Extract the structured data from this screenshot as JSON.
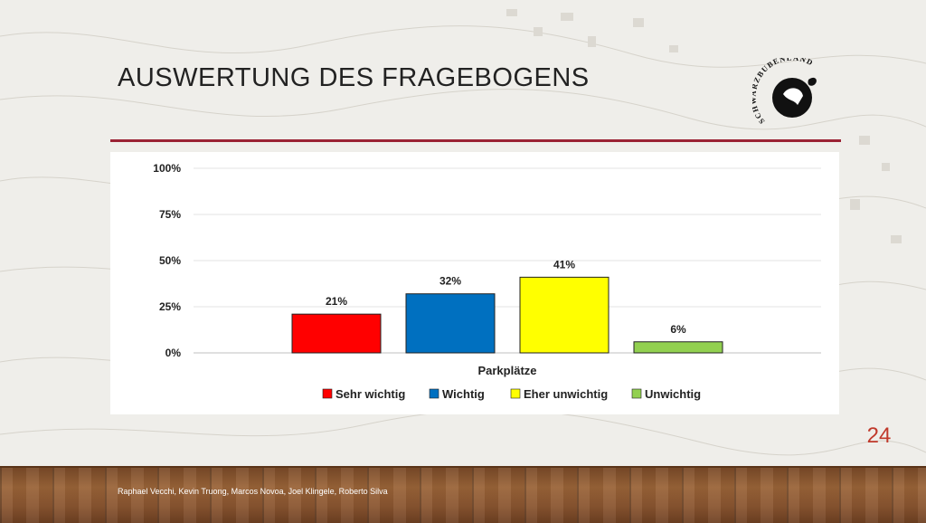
{
  "slide": {
    "title": "AUSWERTUNG DES FRAGEBOGENS",
    "number": "24",
    "credits": "Raphael Vecchi, Kevin Truong, Marcos Novoa, Joel Klingele, Roberto Silva",
    "accent_color": "#9b2335",
    "logo_text": "SCHWARZBUBENLAND"
  },
  "chart_data": {
    "type": "bar",
    "categories": [
      "Parkplätze"
    ],
    "xlabel": "Parkplätze",
    "ylabel": "",
    "ylim": [
      0,
      100
    ],
    "yticks": [
      "0%",
      "25%",
      "50%",
      "75%",
      "100%"
    ],
    "grid": true,
    "legend_position": "bottom",
    "series": [
      {
        "name": "Sehr wichtig",
        "values": [
          21
        ],
        "label": "21%",
        "color": "#ff0000"
      },
      {
        "name": "Wichtig",
        "values": [
          32
        ],
        "label": "32%",
        "color": "#0070c0"
      },
      {
        "name": "Eher unwichtig",
        "values": [
          41
        ],
        "label": "41%",
        "color": "#ffff00"
      },
      {
        "name": "Unwichtig",
        "values": [
          6
        ],
        "label": "6%",
        "color": "#92d050"
      }
    ]
  }
}
